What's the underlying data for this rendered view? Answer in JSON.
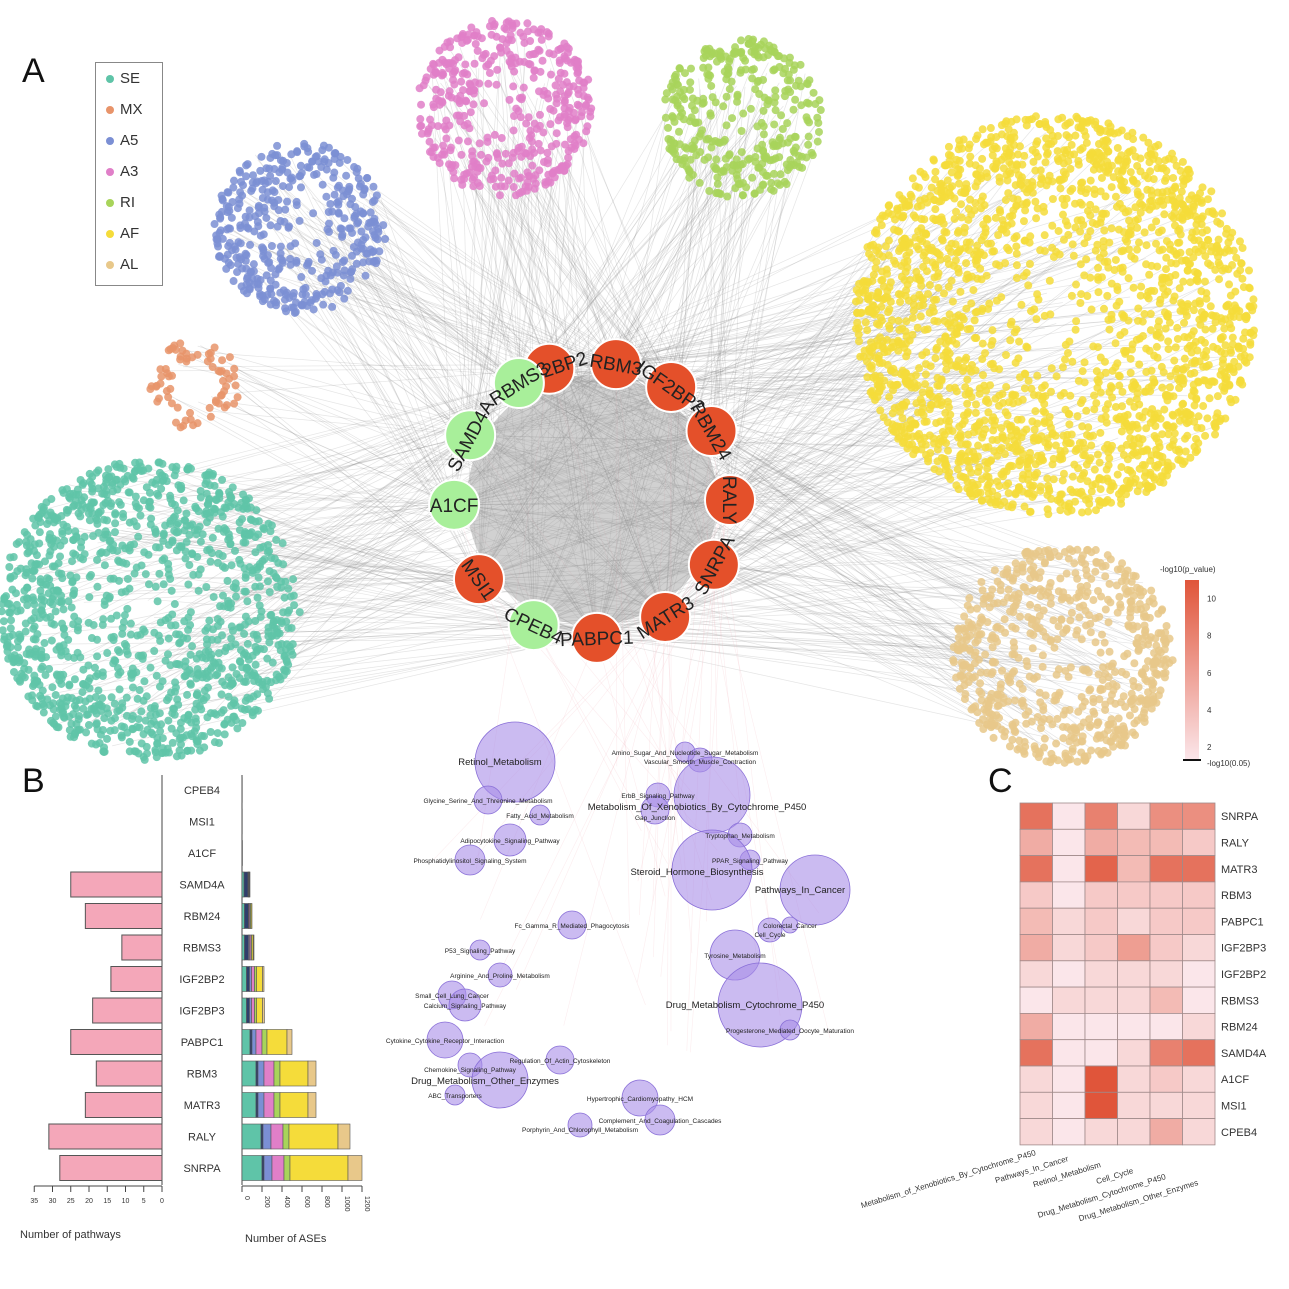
{
  "panels": {
    "a": "A",
    "b": "B",
    "c": "C"
  },
  "legend": [
    {
      "label": "SE",
      "color": "#5fc4a8"
    },
    {
      "label": "MX",
      "color": "#e8946a"
    },
    {
      "label": "A5",
      "color": "#7b8fd4"
    },
    {
      "label": "A3",
      "color": "#e07fc8"
    },
    {
      "label": "RI",
      "color": "#a8d45a"
    },
    {
      "label": "AF",
      "color": "#f5dc3a"
    },
    {
      "label": "AL",
      "color": "#e8c88a"
    }
  ],
  "network": {
    "core_nodes": [
      {
        "label": "IGF2BP2",
        "group": "up"
      },
      {
        "label": "RBM3",
        "group": "up"
      },
      {
        "label": "IGF2BP3",
        "group": "up"
      },
      {
        "label": "RBM24",
        "group": "up"
      },
      {
        "label": "RALY",
        "group": "up"
      },
      {
        "label": "SNRPA",
        "group": "up"
      },
      {
        "label": "MATR3",
        "group": "up"
      },
      {
        "label": "PABPC1",
        "group": "up"
      },
      {
        "label": "CPEB4",
        "group": "down"
      },
      {
        "label": "MSI1",
        "group": "up"
      },
      {
        "label": "A1CF",
        "group": "down"
      },
      {
        "label": "SAMD4A",
        "group": "down"
      },
      {
        "label": "RBMS3",
        "group": "down"
      }
    ],
    "colors": {
      "up": "#e4502a",
      "down": "#a8ef9a",
      "edge": "#8a8a8a",
      "pathway": "#a98ee8"
    },
    "pathways": [
      "Retinol_Metabolism",
      "Amino_Sugar_And_Nucleotide_Sugar_Metabolism",
      "Vascular_Smooth_Muscle_Contraction",
      "ErbB_Signaling_Pathway",
      "Metabolism_Of_Xenobiotics_By_Cytochrome_P450",
      "Glycine_Serine_And_Threonine_Metabolism",
      "Fatty_Acid_Metabolism",
      "Gap_Junction",
      "Tryptophan_Metabolism",
      "Adipocytokine_Signaling_Pathway",
      "PPAR_Signaling_Pathway",
      "Phosphatidylinositol_Signaling_System",
      "Steroid_Hormone_Biosynthesis",
      "Pathways_In_Cancer",
      "Colorectal_Cancer",
      "Fc_Gamma_R_Mediated_Phagocytosis",
      "Cell_Cycle",
      "Tyrosine_Metabolism",
      "P53_Signaling_Pathway",
      "Arginine_And_Proline_Metabolism",
      "Small_Cell_Lung_Cancer",
      "Calcium_Signaling_Pathway",
      "Drug_Metabolism_Cytochrome_P450",
      "Progesterone_Mediated_Oocyte_Maturation",
      "Cytokine_Cytokine_Receptor_Interaction",
      "Chemokine_Signaling_Pathway",
      "Regulation_Of_Actin_Cytoskeleton",
      "Drug_Metabolism_Other_Enzymes",
      "ABC_Transporters",
      "Hypertrophic_Cardiomyopathy_HCM",
      "Complement_And_Coagulation_Cascades",
      "Porphyrin_And_Chlorophyll_Metabolism"
    ]
  },
  "colorbar": {
    "title": "-log10(p_value)",
    "ticks": [
      2,
      4,
      6,
      8,
      10
    ],
    "threshold_label": "-log10(0.05)",
    "range": [
      1.3,
      11
    ],
    "low": "#fbe6ea",
    "high": "#e0553a"
  },
  "chart_data": [
    {
      "type": "bar",
      "title": "",
      "xlabel": "Number of pathways",
      "categories": [
        "CPEB4",
        "MSI1",
        "A1CF",
        "SAMD4A",
        "RBM24",
        "RBMS3",
        "IGF2BP2",
        "IGF2BP3",
        "PABPC1",
        "RBM3",
        "MATR3",
        "RALY",
        "SNRPA"
      ],
      "values": [
        0,
        0,
        0,
        25,
        21,
        11,
        14,
        19,
        25,
        18,
        21,
        31,
        28
      ],
      "xlim": [
        35,
        0
      ],
      "ticks": [
        35,
        30,
        25,
        20,
        15,
        10,
        5,
        0
      ],
      "color": "#f4a7b9"
    },
    {
      "type": "bar",
      "title": "",
      "xlabel": "Number of ASEs",
      "stacked": true,
      "categories": [
        "CPEB4",
        "MSI1",
        "A1CF",
        "SAMD4A",
        "RBM24",
        "RBMS3",
        "IGF2BP2",
        "IGF2BP3",
        "PABPC1",
        "RBM3",
        "MATR3",
        "RALY",
        "SNRPA"
      ],
      "series": [
        {
          "name": "SE",
          "values": [
            2,
            2,
            3,
            20,
            25,
            25,
            45,
            45,
            80,
            140,
            140,
            190,
            200
          ]
        },
        {
          "name": "MX",
          "values": [
            1,
            1,
            1,
            40,
            40,
            40,
            30,
            30,
            20,
            20,
            20,
            20,
            20
          ]
        },
        {
          "name": "A5",
          "values": [
            0,
            0,
            0,
            5,
            5,
            10,
            20,
            20,
            40,
            60,
            60,
            80,
            80
          ]
        },
        {
          "name": "A3",
          "values": [
            0,
            0,
            0,
            5,
            10,
            15,
            30,
            30,
            60,
            100,
            100,
            120,
            120
          ]
        },
        {
          "name": "RI",
          "values": [
            0,
            0,
            0,
            5,
            10,
            10,
            20,
            20,
            50,
            60,
            60,
            60,
            60
          ]
        },
        {
          "name": "AF",
          "values": [
            0,
            0,
            0,
            5,
            10,
            15,
            60,
            60,
            200,
            280,
            280,
            490,
            580
          ]
        },
        {
          "name": "AL",
          "values": [
            0,
            0,
            0,
            0,
            0,
            5,
            15,
            20,
            50,
            80,
            80,
            120,
            140
          ]
        }
      ],
      "xlim": [
        0,
        1200
      ],
      "ticks": [
        0,
        200,
        400,
        600,
        800,
        1000,
        1200
      ]
    },
    {
      "type": "heatmap",
      "title": "",
      "rows": [
        "SNRPA",
        "RALY",
        "MATR3",
        "RBM3",
        "PABPC1",
        "IGF2BP3",
        "IGF2BP2",
        "RBMS3",
        "RBM24",
        "SAMD4A",
        "A1CF",
        "MSI1",
        "CPEB4"
      ],
      "columns": [
        "Metabolism_of_Xenobiotics_By_Cytochrome_P450",
        "Pathways_In_Cancer",
        "Retinol_Metabolism",
        "Cell_Cycle",
        "Drug_Metabolism_Cytochrome_P450",
        "Drug_Metabolism_Other_Enzymes"
      ],
      "values": [
        [
          9,
          1,
          8,
          2,
          7,
          7
        ],
        [
          5,
          1,
          5,
          4,
          4,
          3
        ],
        [
          9,
          1,
          10,
          4,
          9,
          9
        ],
        [
          3,
          1,
          3,
          3,
          3,
          3
        ],
        [
          4,
          2,
          3,
          2,
          3,
          3
        ],
        [
          5,
          2,
          3,
          6,
          3,
          2
        ],
        [
          2,
          1,
          2,
          2,
          2,
          1
        ],
        [
          1,
          2,
          2,
          2,
          4,
          1
        ],
        [
          5,
          1,
          1,
          1,
          1,
          2
        ],
        [
          9,
          1,
          1,
          2,
          8,
          9
        ],
        [
          2,
          1,
          11,
          2,
          3,
          2
        ],
        [
          2,
          1,
          11,
          2,
          2,
          2
        ],
        [
          2,
          1,
          2,
          2,
          5,
          2
        ]
      ],
      "colorbar_label": "-log10(p_value)"
    }
  ]
}
